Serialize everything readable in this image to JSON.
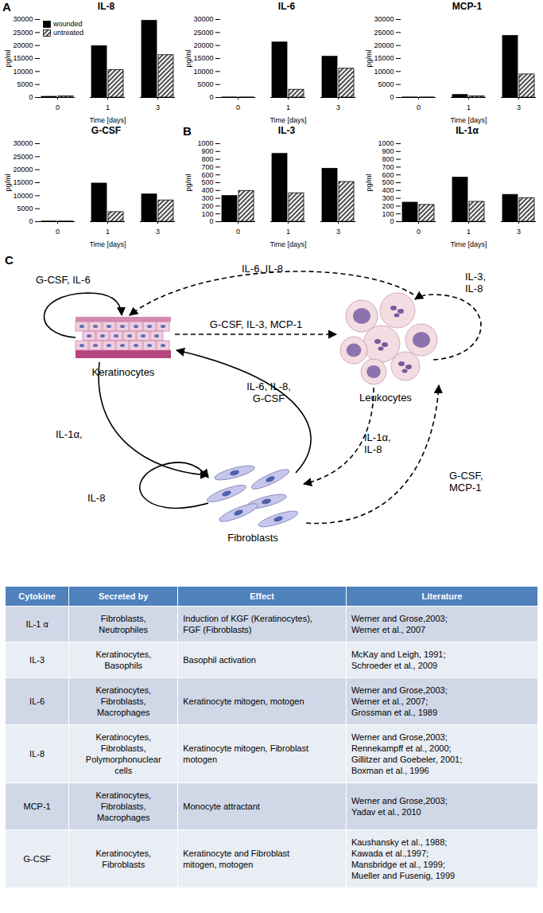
{
  "panels": [
    "A",
    "B",
    "C"
  ],
  "chart_data": [
    {
      "type": "bar",
      "title": "IL-8",
      "x_label": "Time [days]",
      "y_label": "pg/ml",
      "categories": [
        "0",
        "1",
        "3"
      ],
      "series": [
        {
          "name": "wounded",
          "color": "#000000",
          "values": [
            300,
            19800,
            29500
          ]
        },
        {
          "name": "untreated",
          "color": "#000000",
          "values": [
            500,
            10600,
            16300
          ]
        }
      ],
      "ylim": [
        0,
        30000
      ],
      "yticks": [
        0,
        5000,
        10000,
        15000,
        20000,
        25000,
        30000
      ],
      "grid": false,
      "legend": "top-left"
    },
    {
      "type": "bar",
      "title": "IL-6",
      "x_label": "Time [days]",
      "y_label": "pg/ml",
      "categories": [
        "0",
        "1",
        "3"
      ],
      "series": [
        {
          "name": "wounded",
          "color": "#000000",
          "values": [
            50,
            21200,
            15700
          ]
        },
        {
          "name": "untreated",
          "color": "#000000",
          "values": [
            50,
            3000,
            11100
          ]
        }
      ],
      "ylim": [
        0,
        30000
      ],
      "yticks": [
        0,
        5000,
        10000,
        15000,
        20000,
        25000,
        30000
      ],
      "grid": false
    },
    {
      "type": "bar",
      "title": "MCP-1",
      "x_label": "Time [days]",
      "y_label": "pg/ml",
      "categories": [
        "0",
        "1",
        "3"
      ],
      "series": [
        {
          "name": "wounded",
          "color": "#000000",
          "values": [
            50,
            1000,
            23700
          ]
        },
        {
          "name": "untreated",
          "color": "#000000",
          "values": [
            50,
            500,
            8900
          ]
        }
      ],
      "ylim": [
        0,
        30000
      ],
      "yticks": [
        0,
        5000,
        10000,
        15000,
        20000,
        25000,
        30000
      ],
      "grid": false
    },
    {
      "type": "bar",
      "title": "G-CSF",
      "x_label": "Time [days]",
      "y_label": "pg/ml",
      "categories": [
        "0",
        "1",
        "3"
      ],
      "series": [
        {
          "name": "wounded",
          "color": "#000000",
          "values": [
            100,
            14700,
            10500
          ]
        },
        {
          "name": "untreated",
          "color": "#000000",
          "values": [
            100,
            3700,
            8200
          ]
        }
      ],
      "ylim": [
        0,
        30000
      ],
      "yticks": [
        0,
        5000,
        10000,
        15000,
        20000,
        25000,
        30000
      ],
      "grid": false
    },
    {
      "type": "bar",
      "title": "IL-3",
      "x_label": "Time [days]",
      "y_label": "pg/ml",
      "categories": [
        "0",
        "1",
        "3"
      ],
      "series": [
        {
          "name": "wounded",
          "color": "#000000",
          "values": [
            330,
            870,
            680
          ]
        },
        {
          "name": "untreated",
          "color": "#000000",
          "values": [
            395,
            365,
            510
          ]
        }
      ],
      "ylim": [
        0,
        1000
      ],
      "yticks": [
        0,
        100,
        200,
        300,
        400,
        500,
        600,
        700,
        800,
        900,
        1000
      ],
      "grid": false
    },
    {
      "type": "bar",
      "title": "IL-1α",
      "x_label": "Time [days]",
      "y_label": "pg/ml",
      "categories": [
        "0",
        "1",
        "3"
      ],
      "series": [
        {
          "name": "wounded",
          "color": "#000000",
          "values": [
            245,
            565,
            345
          ]
        },
        {
          "name": "untreated",
          "color": "#000000",
          "values": [
            215,
            255,
            300
          ]
        }
      ],
      "ylim": [
        0,
        1000
      ],
      "yticks": [
        0,
        100,
        200,
        300,
        400,
        500,
        600,
        700,
        800,
        900,
        1000
      ],
      "grid": false
    }
  ],
  "diagram": {
    "nodes": [
      "Keratinocytes",
      "Leukocytes",
      "Fibroblasts"
    ],
    "edges": [
      {
        "from": "Keratinocytes",
        "to": "Keratinocytes",
        "label": [
          "G-CSF, IL-6"
        ],
        "line_style": "solid"
      },
      {
        "from": "Leukocytes",
        "to": "Keratinocytes",
        "label": [
          "IL-6, IL-8"
        ],
        "line_style": "dashed"
      },
      {
        "from": "Keratinocytes",
        "to": "Leukocytes",
        "label": [
          "G-CSF, IL-3, MCP-1"
        ],
        "line_style": "dashed"
      },
      {
        "from": "Leukocytes",
        "to": "Leukocytes",
        "label": [
          "IL-3,",
          "IL-8"
        ],
        "line_style": "dashed"
      },
      {
        "from": "Fibroblasts",
        "to": "Keratinocytes",
        "label": [
          "IL-6, IL-8,",
          "G-CSF"
        ],
        "line_style": "solid"
      },
      {
        "from": "Keratinocytes",
        "to": "Fibroblasts",
        "label": [
          "IL-1α,"
        ],
        "line_style": "solid"
      },
      {
        "from": "Leukocytes",
        "to": "Fibroblasts",
        "label": [
          "IL-1α,",
          "IL-8"
        ],
        "line_style": "dashed"
      },
      {
        "from": "Fibroblasts",
        "to": "Fibroblasts",
        "label": [
          "IL-8"
        ],
        "line_style": "solid"
      },
      {
        "from": "Fibroblasts",
        "to": "Leukocytes",
        "label": [
          "G-CSF,",
          "MCP-1"
        ],
        "line_style": "dashed"
      }
    ]
  },
  "table": {
    "header": [
      "Cytokine",
      "Secreted by",
      "Effect",
      "Literature"
    ],
    "rows": [
      [
        [
          "IL-1 α"
        ],
        [
          "Fibroblasts,",
          "Neutrophiles"
        ],
        [
          "Induction of KGF (Keratinocytes),",
          "FGF (Fibroblasts)"
        ],
        [
          "Werner and Grose,2003;",
          "Werner et al., 2007"
        ]
      ],
      [
        [
          "IL-3"
        ],
        [
          "Keratinocytes,",
          "Basophils"
        ],
        [
          "Basophil activation"
        ],
        [
          "McKay and Leigh, 1991;",
          "Schroeder et al., 2009"
        ]
      ],
      [
        [
          "IL-6"
        ],
        [
          "Keratinocytes,",
          "Fibroblasts,",
          "Macrophages"
        ],
        [
          "Keratinocyte mitogen, motogen"
        ],
        [
          "Werner and Grose,2003;",
          "Werner et al., 2007;",
          "Grossman et al., 1989"
        ]
      ],
      [
        [
          "IL-8"
        ],
        [
          "Keratinocytes,",
          "Fibroblasts,",
          "Polymorphonuclear",
          "cells"
        ],
        [
          "Keratinocyte mitogen, Fibroblast",
          "motogen"
        ],
        [
          "Werner and Grose,2003;",
          "Rennekampff et al., 2000;",
          "Gillitzer and Goebeler, 2001;",
          "Boxman et al., 1996"
        ]
      ],
      [
        [
          "MCP-1"
        ],
        [
          "Keratinocytes,",
          "Fibroblasts,",
          "Macrophages"
        ],
        [
          "Monocyte attractant"
        ],
        [
          "Werner and Grose,2003;",
          "Yadav et al., 2010"
        ]
      ],
      [
        [
          "G-CSF"
        ],
        [
          "Keratinocytes,",
          "Fibroblasts"
        ],
        [
          "Keratinocyte and Fibroblast",
          "mitogen, motogen"
        ],
        [
          "Kaushansky et al., 1988;",
          "Kawada et al.,1997;",
          "Mansbridge et al., 1999;",
          "Mueller and Fusenig, 1999"
        ]
      ]
    ]
  }
}
